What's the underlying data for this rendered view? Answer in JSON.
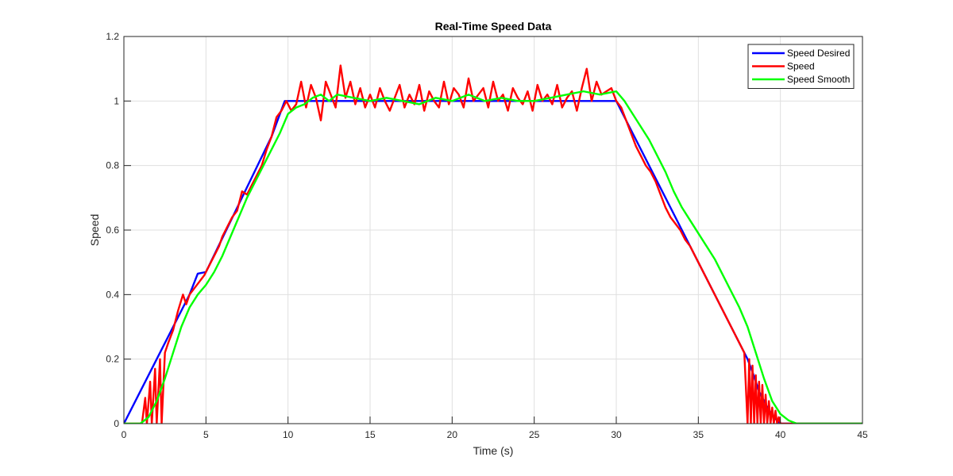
{
  "chart_data": {
    "type": "line",
    "title": "Real-Time Speed Data",
    "xlabel": "Time (s)",
    "ylabel": "Speed",
    "xlim": [
      0,
      45
    ],
    "ylim": [
      0,
      1.2
    ],
    "xticks": [
      0,
      5,
      10,
      15,
      20,
      25,
      30,
      35,
      40,
      45
    ],
    "yticks": [
      0,
      0.2,
      0.4,
      0.6,
      0.8,
      1,
      1.2
    ],
    "xtick_labels": [
      "0",
      "5",
      "10",
      "15",
      "20",
      "25",
      "30",
      "35",
      "40",
      "45"
    ],
    "ytick_labels": [
      "0",
      "0.2",
      "0.4",
      "0.6",
      "0.8",
      "1",
      "1.2"
    ],
    "grid": true,
    "legend_position": "top-right",
    "series": [
      {
        "name": "Speed Desired",
        "color": "#0000ff",
        "x": [
          0,
          1,
          2,
          3,
          4,
          4.5,
          5,
          6,
          7,
          8,
          9,
          9.8,
          10,
          15,
          20,
          25,
          30,
          31,
          32,
          33,
          34,
          35,
          36,
          37,
          38,
          38.3,
          38.7,
          39.2,
          39.6,
          40,
          40.5,
          41,
          42,
          43,
          44,
          45
        ],
        "y": [
          0,
          0.1,
          0.2,
          0.3,
          0.4,
          0.465,
          0.47,
          0.575,
          0.68,
          0.785,
          0.89,
          1,
          1,
          1,
          1,
          1,
          1,
          0.9,
          0.8,
          0.7,
          0.6,
          0.5,
          0.4,
          0.3,
          0.2,
          0.16,
          0.1,
          0.05,
          0.02,
          0,
          0,
          0,
          0,
          0,
          0,
          0
        ]
      },
      {
        "name": "Speed",
        "color": "#ff0000",
        "x": [
          0,
          1.1,
          1.3,
          1.4,
          1.6,
          1.7,
          1.9,
          2.0,
          2.2,
          2.3,
          2.5,
          2.7,
          3.0,
          3.3,
          3.6,
          3.8,
          4.0,
          4.3,
          4.6,
          4.9,
          5.2,
          5.5,
          5.8,
          6.0,
          6.3,
          6.6,
          6.9,
          7.2,
          7.5,
          7.8,
          8.1,
          8.4,
          8.7,
          9.0,
          9.3,
          9.6,
          9.9,
          10.2,
          10.5,
          10.8,
          11.1,
          11.4,
          11.7,
          12.0,
          12.3,
          12.6,
          12.9,
          13.2,
          13.5,
          13.8,
          14.1,
          14.4,
          14.7,
          15.0,
          15.3,
          15.6,
          15.9,
          16.2,
          16.5,
          16.8,
          17.1,
          17.4,
          17.7,
          18.0,
          18.3,
          18.6,
          18.9,
          19.2,
          19.5,
          19.8,
          20.1,
          20.4,
          20.7,
          21.0,
          21.3,
          21.6,
          21.9,
          22.2,
          22.5,
          22.8,
          23.1,
          23.4,
          23.7,
          24.0,
          24.3,
          24.6,
          24.9,
          25.2,
          25.5,
          25.8,
          26.1,
          26.4,
          26.7,
          27.0,
          27.3,
          27.6,
          27.9,
          28.2,
          28.5,
          28.8,
          29.1,
          29.4,
          29.7,
          30.0,
          30.3,
          30.6,
          30.9,
          31.2,
          31.5,
          31.8,
          32.1,
          32.4,
          32.7,
          33.0,
          33.3,
          33.6,
          33.9,
          34.2,
          34.5,
          34.8,
          35.1,
          35.4,
          35.7,
          36.0,
          36.3,
          36.6,
          36.9,
          37.2,
          37.5,
          37.8,
          38.0,
          38.1,
          38.2,
          38.3,
          38.4,
          38.5,
          38.6,
          38.7,
          38.8,
          38.9,
          39.0,
          39.1,
          39.2,
          39.3,
          39.4,
          39.5,
          39.6,
          39.7,
          39.8,
          39.9,
          40.0,
          40.2,
          41,
          45
        ],
        "y": [
          0,
          0,
          0.08,
          0,
          0.13,
          0,
          0.17,
          0,
          0.2,
          0,
          0.22,
          0.25,
          0.29,
          0.35,
          0.4,
          0.37,
          0.4,
          0.42,
          0.44,
          0.46,
          0.49,
          0.52,
          0.55,
          0.58,
          0.61,
          0.64,
          0.66,
          0.72,
          0.71,
          0.74,
          0.77,
          0.8,
          0.85,
          0.89,
          0.95,
          0.97,
          1.0,
          0.97,
          0.99,
          1.06,
          0.98,
          1.05,
          1.01,
          0.94,
          1.06,
          1.02,
          0.98,
          1.11,
          1.01,
          1.06,
          0.99,
          1.04,
          0.98,
          1.02,
          0.98,
          1.04,
          1.0,
          0.97,
          1.01,
          1.05,
          0.98,
          1.02,
          0.99,
          1.05,
          0.97,
          1.03,
          1.0,
          0.98,
          1.06,
          0.99,
          1.04,
          1.02,
          0.98,
          1.07,
          1.0,
          1.02,
          1.04,
          0.98,
          1.06,
          1.0,
          1.02,
          0.97,
          1.04,
          1.01,
          0.99,
          1.03,
          0.97,
          1.05,
          1.0,
          1.02,
          0.99,
          1.05,
          0.98,
          1.01,
          1.03,
          0.97,
          1.04,
          1.1,
          1.0,
          1.06,
          1.02,
          1.03,
          1.04,
          1.0,
          0.98,
          0.94,
          0.9,
          0.86,
          0.83,
          0.8,
          0.78,
          0.75,
          0.71,
          0.67,
          0.64,
          0.62,
          0.6,
          0.57,
          0.55,
          0.52,
          0.49,
          0.46,
          0.43,
          0.4,
          0.37,
          0.34,
          0.31,
          0.28,
          0.25,
          0.22,
          0,
          0.2,
          0,
          0.18,
          0,
          0.15,
          0,
          0.13,
          0,
          0.12,
          0,
          0.09,
          0,
          0.07,
          0,
          0.05,
          0,
          0.04,
          0,
          0.02,
          0,
          0,
          0,
          0
        ]
      },
      {
        "name": "Speed Smooth",
        "color": "#00ff00",
        "x": [
          0,
          1,
          1.5,
          2,
          2.5,
          3,
          3.5,
          4,
          4.5,
          5,
          5.5,
          6,
          6.5,
          7,
          7.5,
          8,
          8.5,
          9,
          9.5,
          10,
          10.5,
          11,
          11.5,
          12,
          12.5,
          13,
          14,
          15,
          16,
          17,
          18,
          19,
          20,
          21,
          22,
          23,
          24,
          25,
          26,
          27,
          28,
          29,
          30,
          30.5,
          31,
          31.5,
          32,
          32.5,
          33,
          33.5,
          34,
          34.5,
          35,
          35.5,
          36,
          36.5,
          37,
          37.5,
          38,
          38.5,
          39,
          39.5,
          40,
          40.5,
          41,
          42,
          45
        ],
        "y": [
          0,
          0,
          0.02,
          0.07,
          0.14,
          0.22,
          0.3,
          0.36,
          0.4,
          0.43,
          0.47,
          0.52,
          0.58,
          0.64,
          0.7,
          0.75,
          0.8,
          0.85,
          0.9,
          0.96,
          0.98,
          0.99,
          1.01,
          1.02,
          1.0,
          1.02,
          1.01,
          1.0,
          1.01,
          1.0,
          0.99,
          1.01,
          1.0,
          1.02,
          1.0,
          1.01,
          1.0,
          1.0,
          1.01,
          1.02,
          1.03,
          1.02,
          1.03,
          1.0,
          0.96,
          0.92,
          0.88,
          0.83,
          0.78,
          0.72,
          0.67,
          0.63,
          0.59,
          0.55,
          0.51,
          0.46,
          0.41,
          0.36,
          0.3,
          0.22,
          0.14,
          0.07,
          0.03,
          0.01,
          0,
          0,
          0
        ]
      }
    ]
  }
}
